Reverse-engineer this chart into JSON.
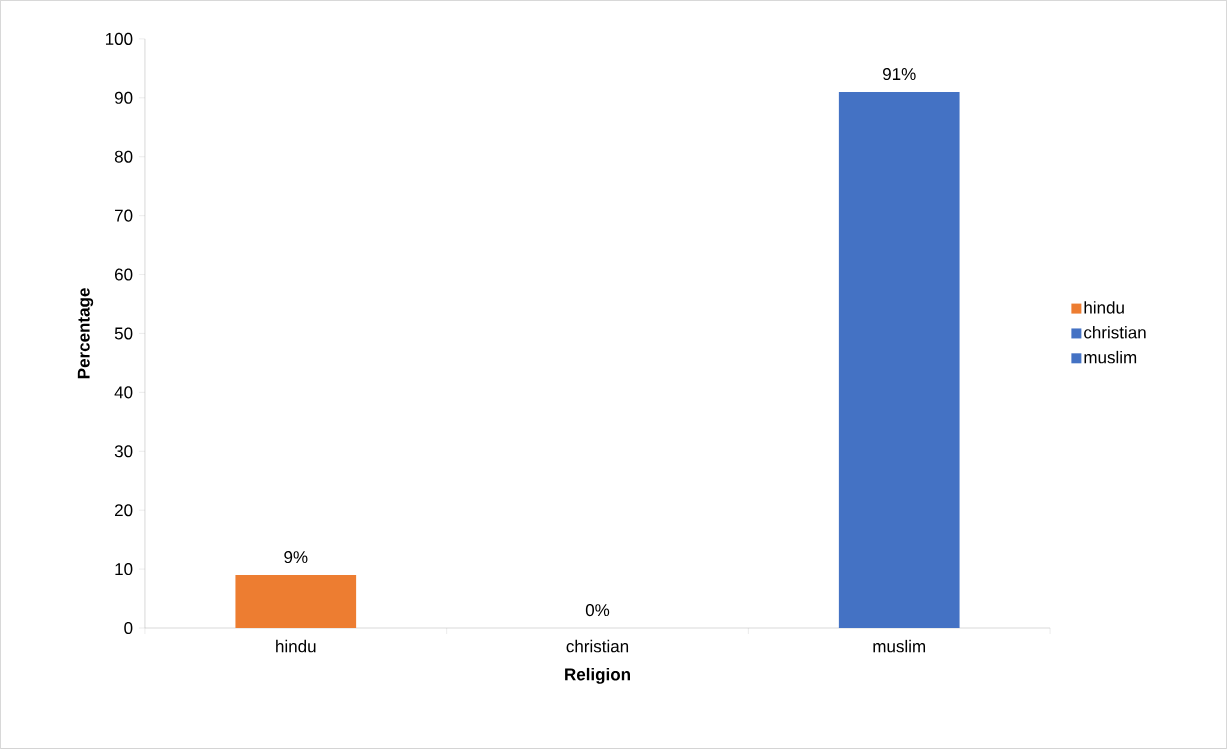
{
  "chart_data": {
    "type": "bar",
    "xlabel": "Religion",
    "ylabel": "Percentage",
    "categories": [
      "hindu",
      "christian",
      "muslim"
    ],
    "series": [
      {
        "name": "hindu",
        "color": "#ed7d31",
        "values": [
          9,
          null,
          null
        ],
        "value_labels": [
          "9%",
          null,
          null
        ]
      },
      {
        "name": "christian",
        "color": "#4472c4",
        "values": [
          null,
          0,
          null
        ],
        "value_labels": [
          null,
          "0%",
          null
        ]
      },
      {
        "name": "muslim",
        "color": "#4472c4",
        "values": [
          null,
          null,
          91
        ],
        "value_labels": [
          null,
          null,
          "91%"
        ]
      }
    ],
    "ylim": [
      0,
      100
    ],
    "yticks": [
      0,
      10,
      20,
      30,
      40,
      50,
      60,
      70,
      80,
      90,
      100
    ],
    "legend": "right"
  }
}
